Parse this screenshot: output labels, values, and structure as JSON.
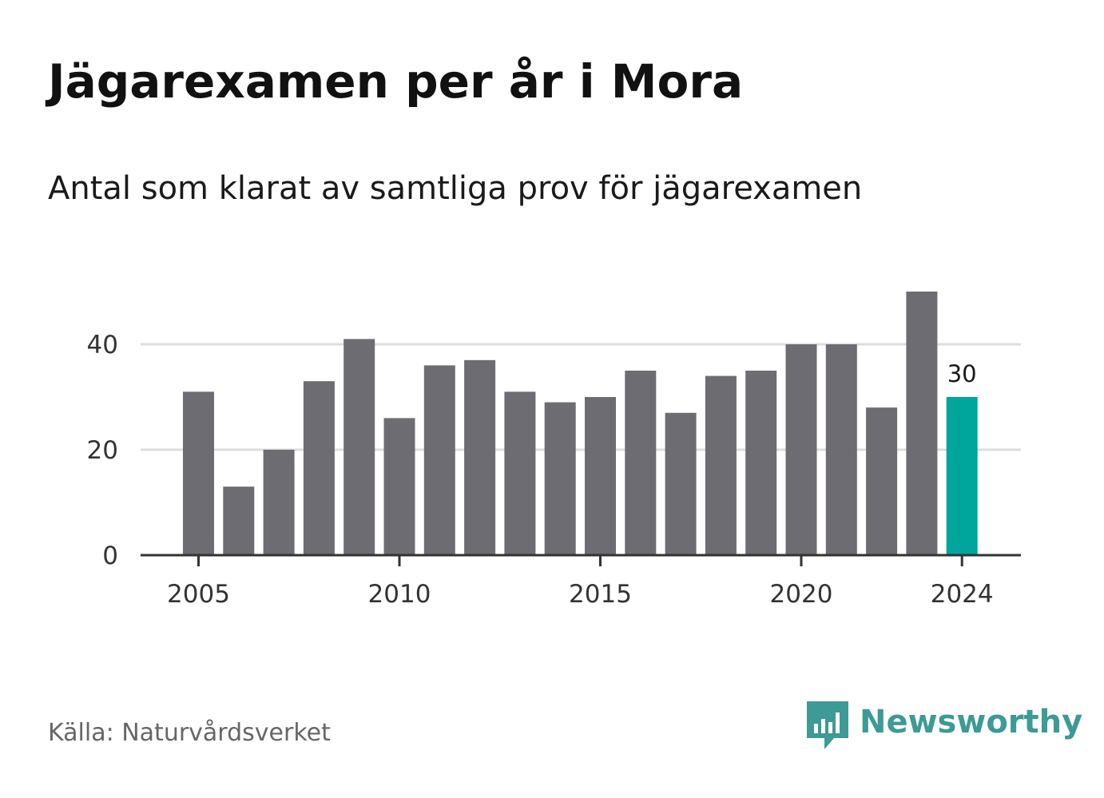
{
  "header": {
    "title": "Jägarexamen per år i Mora",
    "subtitle": "Antal som klarat av samtliga prov för jägarexamen"
  },
  "footer": {
    "source": "Källa: Naturvårdsverket",
    "brand_name": "Newsworthy",
    "brand_icon": "newsworthy-logo-icon"
  },
  "colors": {
    "bar": "#6d6c72",
    "highlight": "#00a59b",
    "grid": "#dddddd",
    "baseline": "#333333",
    "brand": "#3d9a94"
  },
  "chart_data": {
    "type": "bar",
    "title": "",
    "xlabel": "",
    "ylabel": "",
    "categories": [
      "2005",
      "2006",
      "2007",
      "2008",
      "2009",
      "2010",
      "2011",
      "2012",
      "2013",
      "2014",
      "2015",
      "2016",
      "2017",
      "2018",
      "2019",
      "2020",
      "2021",
      "2022",
      "2023",
      "2024"
    ],
    "values": [
      31,
      13,
      20,
      33,
      41,
      26,
      36,
      37,
      31,
      29,
      30,
      35,
      27,
      34,
      35,
      40,
      40,
      28,
      50,
      30
    ],
    "highlight": {
      "category": "2024",
      "label": "30"
    },
    "x_tick_labels": [
      "2005",
      "2010",
      "2015",
      "2020",
      "2024"
    ],
    "y_ticks": [
      0,
      20,
      40
    ],
    "ylim": [
      0,
      50
    ],
    "grid": true,
    "legend": "none"
  }
}
